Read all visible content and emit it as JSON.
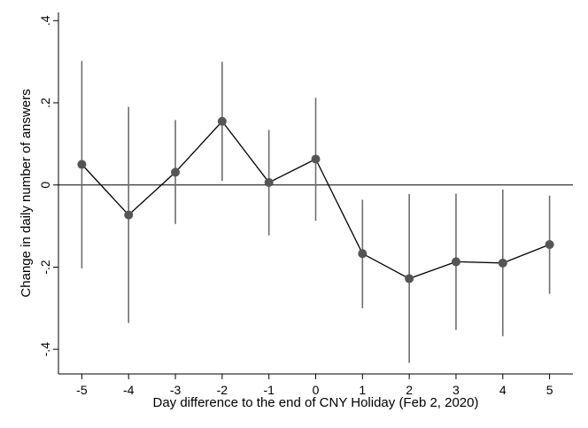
{
  "chart_data": {
    "type": "line",
    "title": "",
    "xlabel": "Day difference to the end of CNY Holiday (Feb 2, 2020)",
    "ylabel": "Change in daily number of answers",
    "x": [
      -5,
      -4,
      -3,
      -2,
      -1,
      0,
      1,
      2,
      3,
      4,
      5
    ],
    "x_tick_labels": [
      "-5",
      "-4",
      "-3",
      "-2",
      "-1",
      "0",
      "1",
      "2",
      "3",
      "4",
      "5"
    ],
    "y_ticks": [
      -0.4,
      -0.2,
      0,
      0.2,
      0.4
    ],
    "y_tick_labels": [
      "-.4",
      "-.2",
      "0",
      ".2",
      ".4"
    ],
    "xlim": [
      -5.5,
      5.5
    ],
    "ylim": [
      -0.46,
      0.42
    ],
    "grid": false,
    "reference_line_y": 0,
    "series": [
      {
        "values": [
          0.05,
          -0.073,
          0.031,
          0.155,
          0.006,
          0.063,
          -0.167,
          -0.228,
          -0.187,
          -0.19,
          -0.145
        ],
        "ci_lower": [
          -0.203,
          -0.336,
          -0.095,
          0.01,
          -0.123,
          -0.087,
          -0.3,
          -0.433,
          -0.353,
          -0.368,
          -0.265
        ],
        "ci_upper": [
          0.302,
          0.19,
          0.158,
          0.3,
          0.134,
          0.212,
          -0.036,
          -0.022,
          -0.021,
          -0.011,
          -0.026
        ],
        "color": "#555555"
      }
    ]
  }
}
